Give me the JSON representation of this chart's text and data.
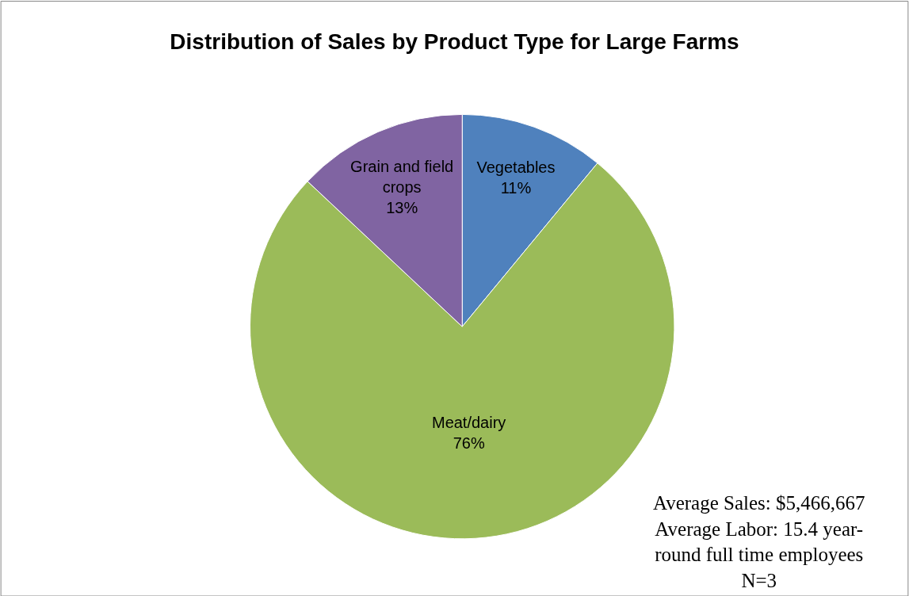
{
  "chart_data": {
    "type": "pie",
    "title": "Distribution of Sales by Product Type for Large Farms",
    "categories": [
      "Vegetables",
      "Meat/dairy",
      "Grain and field crops"
    ],
    "values": [
      11,
      76,
      13
    ],
    "value_labels": [
      "11%",
      "76%",
      "13%"
    ],
    "colors": [
      "#4f81bd",
      "#9bbb59",
      "#8064a2"
    ],
    "legend": false,
    "annotations": [
      "Average Sales: $5,466,667\nAverage Labor: 15.4 year-\nround full time employees\nN=3"
    ]
  }
}
